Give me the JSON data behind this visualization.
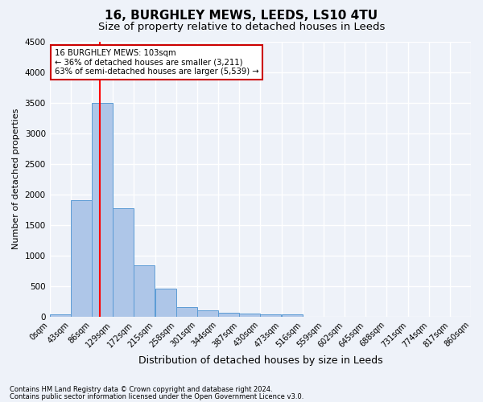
{
  "title1": "16, BURGHLEY MEWS, LEEDS, LS10 4TU",
  "title2": "Size of property relative to detached houses in Leeds",
  "xlabel": "Distribution of detached houses by size in Leeds",
  "ylabel": "Number of detached properties",
  "bin_labels": [
    "0sqm",
    "43sqm",
    "86sqm",
    "129sqm",
    "172sqm",
    "215sqm",
    "258sqm",
    "301sqm",
    "344sqm",
    "387sqm",
    "430sqm",
    "473sqm",
    "516sqm",
    "559sqm",
    "602sqm",
    "645sqm",
    "688sqm",
    "731sqm",
    "774sqm",
    "817sqm",
    "860sqm"
  ],
  "bin_edges": [
    0,
    43,
    86,
    129,
    172,
    215,
    258,
    301,
    344,
    387,
    430,
    473,
    516,
    559,
    602,
    645,
    688,
    731,
    774,
    817,
    860
  ],
  "bar_heights": [
    40,
    1900,
    3500,
    1775,
    840,
    460,
    160,
    100,
    65,
    55,
    40,
    35,
    0,
    0,
    0,
    0,
    0,
    0,
    0,
    0
  ],
  "bar_color": "#aec6e8",
  "bar_edge_color": "#5b9bd5",
  "red_line_x": 103,
  "annotation_text": "16 BURGHLEY MEWS: 103sqm\n← 36% of detached houses are smaller (3,211)\n63% of semi-detached houses are larger (5,539) →",
  "annotation_box_color": "#ffffff",
  "annotation_border_color": "#cc0000",
  "ylim": [
    0,
    4500
  ],
  "yticks": [
    0,
    500,
    1000,
    1500,
    2000,
    2500,
    3000,
    3500,
    4000,
    4500
  ],
  "footnote1": "Contains HM Land Registry data © Crown copyright and database right 2024.",
  "footnote2": "Contains public sector information licensed under the Open Government Licence v3.0.",
  "bg_color": "#eef2f9",
  "grid_color": "#ffffff",
  "title1_fontsize": 11,
  "title2_fontsize": 9.5
}
